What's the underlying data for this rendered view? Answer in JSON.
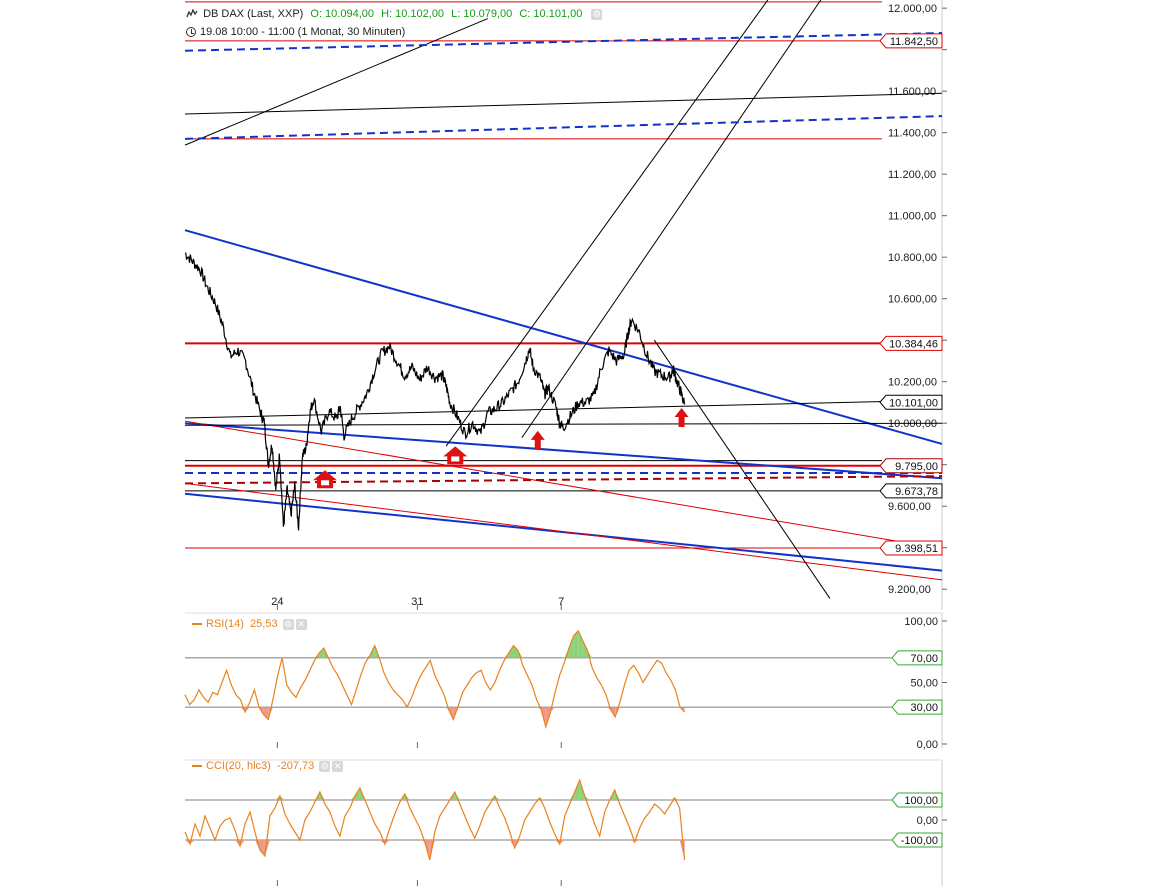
{
  "header": {
    "instrument": "DB DAX (Last, XXP)",
    "open": "O: 10.094,00",
    "high": "H: 10.102,00",
    "low": "L: 10.079,00",
    "close": "C: 10.101,00",
    "period": "19.08 10:00 - 11:00 (1 Monat, 30 Minuten)"
  },
  "colors": {
    "price": "#000000",
    "support_blue": "#1133cc",
    "resistance_red": "#dd0000",
    "indicator": "#e8821e",
    "overbought_fill": "#8ed27a",
    "oversold_fill": "#ee9a86",
    "arrow": "#e01010"
  },
  "chart_data": [
    {
      "type": "line",
      "name": "DB DAX price chart",
      "ylim": [
        9100,
        12020
      ],
      "yticks": [
        9200,
        9400,
        9600,
        9800,
        10000,
        10200,
        10400,
        10600,
        10800,
        11000,
        11200,
        11400,
        11600,
        11800,
        12000
      ],
      "ytick_labels": [
        "9.200,00",
        "",
        "9.600,00",
        "",
        "10.000,00",
        "10.200,00",
        "",
        "10.600,00",
        "10.800,00",
        "11.000,00",
        "11.200,00",
        "11.400,00",
        "11.600,00",
        "",
        "12.000,00"
      ],
      "xticks": [
        {
          "label": "24",
          "t": 0.122
        },
        {
          "label": "31",
          "t": 0.307
        },
        {
          "label": "7",
          "t": 0.497
        }
      ],
      "price_labels": [
        {
          "text": "11.842,50",
          "value": 11842.5,
          "color": "#dd0000"
        },
        {
          "text": "10.384,46",
          "value": 10384.46,
          "color": "#dd0000"
        },
        {
          "text": "10.101,00",
          "value": 10101,
          "color": "#000000"
        },
        {
          "text": "9.795,00",
          "value": 9795,
          "color": "#aa0000"
        },
        {
          "text": "9.673,78",
          "value": 9673.78,
          "color": "#000000"
        },
        {
          "text": "9.398,51",
          "value": 9398.51,
          "color": "#dd0000"
        }
      ],
      "horizontal_lines": [
        {
          "value": 12030,
          "color": "#dd0000"
        },
        {
          "value": 11842.5,
          "color": "#dd0000"
        },
        {
          "value": 11370,
          "color": "#dd0000"
        },
        {
          "value": 10384.46,
          "color": "#dd0000",
          "width": 2
        },
        {
          "value": 9820,
          "color": "#000000"
        },
        {
          "value": 9795,
          "color": "#dd0000",
          "width": 2
        },
        {
          "value": 9673.78,
          "color": "#000000"
        },
        {
          "value": 9398.51,
          "color": "#dd0000"
        }
      ],
      "trend_lines": [
        {
          "t1": 0.0,
          "v1": 10930,
          "t2": 1.0,
          "v2": 9900,
          "color": "#1133cc",
          "width": 2
        },
        {
          "t1": 0.0,
          "v1": 10000,
          "t2": 1.0,
          "v2": 9735,
          "color": "#1133cc",
          "width": 2
        },
        {
          "t1": 0.0,
          "v1": 9660,
          "t2": 1.0,
          "v2": 9290,
          "color": "#1133cc",
          "width": 2
        },
        {
          "t1": 0.0,
          "v1": 10010,
          "t2": 1.0,
          "v2": 9395,
          "color": "#dd0000",
          "width": 1
        },
        {
          "t1": 0.0,
          "v1": 9710,
          "t2": 1.0,
          "v2": 9245,
          "color": "#dd0000",
          "width": 1
        },
        {
          "t1": 0.0,
          "v1": 10025,
          "t2": 1.0,
          "v2": 10111,
          "color": "#000000",
          "width": 1
        },
        {
          "t1": 0.0,
          "v1": 9990,
          "t2": 1.0,
          "v2": 10000,
          "color": "#000000",
          "width": 1
        },
        {
          "t1": 0.0,
          "v1": 11490,
          "t2": 1.0,
          "v2": 11590,
          "color": "#000000",
          "width": 1
        },
        {
          "t1": 0.0,
          "v1": 11340,
          "t2": 0.4,
          "v2": 11950,
          "color": "#000000",
          "width": 1
        },
        {
          "t1": 0.345,
          "v1": 9890,
          "t2": 0.77,
          "v2": 12040,
          "color": "#000000",
          "width": 1
        },
        {
          "t1": 0.445,
          "v1": 9930,
          "t2": 0.84,
          "v2": 12040,
          "color": "#000000",
          "width": 1
        },
        {
          "t1": 0.62,
          "v1": 10400,
          "t2": 0.852,
          "v2": 9155,
          "color": "#000000",
          "width": 1
        }
      ],
      "dashed_lines": [
        {
          "t1": 0.0,
          "v1": 11795,
          "t2": 1.0,
          "v2": 11880,
          "color": "#1133cc"
        },
        {
          "t1": 0.0,
          "v1": 11370,
          "t2": 1.0,
          "v2": 11480,
          "color": "#1133cc"
        },
        {
          "t1": 0.0,
          "v1": 9760,
          "t2": 1.0,
          "v2": 9760,
          "color": "#1133cc"
        },
        {
          "t1": 0.0,
          "v1": 9710,
          "t2": 1.0,
          "v2": 9745,
          "color": "#aa0000"
        }
      ],
      "markers": [
        {
          "t": 0.185,
          "v": 9725,
          "kind": "house"
        },
        {
          "t": 0.357,
          "v": 9840,
          "kind": "house"
        },
        {
          "t": 0.466,
          "v": 9920,
          "kind": "up"
        },
        {
          "t": 0.656,
          "v": 10030,
          "kind": "up"
        }
      ],
      "price_series": [
        [
          0.0,
          10820
        ],
        [
          0.01,
          10780
        ],
        [
          0.02,
          10740
        ],
        [
          0.03,
          10650
        ],
        [
          0.04,
          10580
        ],
        [
          0.05,
          10470
        ],
        [
          0.06,
          10320
        ],
        [
          0.07,
          10350
        ],
        [
          0.08,
          10300
        ],
        [
          0.09,
          10160
        ],
        [
          0.1,
          10050
        ],
        [
          0.105,
          10000
        ],
        [
          0.11,
          9800
        ],
        [
          0.115,
          9900
        ],
        [
          0.12,
          9680
        ],
        [
          0.125,
          9850
        ],
        [
          0.13,
          9500
        ],
        [
          0.135,
          9680
        ],
        [
          0.14,
          9560
        ],
        [
          0.145,
          9700
        ],
        [
          0.15,
          9500
        ],
        [
          0.155,
          9840
        ],
        [
          0.16,
          9880
        ],
        [
          0.165,
          10050
        ],
        [
          0.17,
          10120
        ],
        [
          0.18,
          9960
        ],
        [
          0.19,
          10060
        ],
        [
          0.2,
          10020
        ],
        [
          0.205,
          10080
        ],
        [
          0.21,
          9940
        ],
        [
          0.22,
          10020
        ],
        [
          0.23,
          10080
        ],
        [
          0.24,
          10140
        ],
        [
          0.25,
          10250
        ],
        [
          0.26,
          10340
        ],
        [
          0.27,
          10370
        ],
        [
          0.28,
          10300
        ],
        [
          0.29,
          10230
        ],
        [
          0.3,
          10270
        ],
        [
          0.31,
          10210
        ],
        [
          0.32,
          10270
        ],
        [
          0.33,
          10220
        ],
        [
          0.34,
          10230
        ],
        [
          0.345,
          10180
        ],
        [
          0.35,
          10100
        ],
        [
          0.36,
          10030
        ],
        [
          0.37,
          9950
        ],
        [
          0.38,
          10000
        ],
        [
          0.39,
          9950
        ],
        [
          0.4,
          10050
        ],
        [
          0.41,
          10070
        ],
        [
          0.42,
          10100
        ],
        [
          0.43,
          10150
        ],
        [
          0.44,
          10200
        ],
        [
          0.45,
          10300
        ],
        [
          0.455,
          10360
        ],
        [
          0.46,
          10270
        ],
        [
          0.47,
          10210
        ],
        [
          0.475,
          10140
        ],
        [
          0.48,
          10170
        ],
        [
          0.49,
          10080
        ],
        [
          0.495,
          10000
        ],
        [
          0.5,
          9980
        ],
        [
          0.51,
          10040
        ],
        [
          0.52,
          10100
        ],
        [
          0.53,
          10100
        ],
        [
          0.54,
          10130
        ],
        [
          0.55,
          10270
        ],
        [
          0.56,
          10350
        ],
        [
          0.57,
          10300
        ],
        [
          0.58,
          10330
        ],
        [
          0.585,
          10430
        ],
        [
          0.59,
          10500
        ],
        [
          0.6,
          10440
        ],
        [
          0.61,
          10330
        ],
        [
          0.62,
          10250
        ],
        [
          0.63,
          10230
        ],
        [
          0.64,
          10220
        ],
        [
          0.645,
          10260
        ],
        [
          0.65,
          10200
        ],
        [
          0.655,
          10150
        ],
        [
          0.66,
          10090
        ]
      ]
    },
    {
      "type": "line",
      "name": "RSI(14) 25,53",
      "label": "RSI(14)",
      "value_label": "25,53",
      "ylim": [
        0,
        100
      ],
      "yticks": [
        0,
        50,
        100
      ],
      "ytick_labels": [
        "0,00",
        "50,00",
        "100,00"
      ],
      "levels": [
        {
          "value": 70,
          "label": "70,00"
        },
        {
          "value": 30,
          "label": "30,00"
        }
      ],
      "values": [
        40,
        32,
        36,
        44,
        38,
        34,
        42,
        40,
        50,
        60,
        48,
        40,
        36,
        26,
        34,
        44,
        30,
        24,
        20,
        36,
        55,
        70,
        48,
        42,
        38,
        46,
        52,
        60,
        68,
        74,
        78,
        70,
        62,
        56,
        48,
        40,
        32,
        44,
        56,
        66,
        72,
        80,
        70,
        58,
        50,
        44,
        40,
        36,
        30,
        38,
        48,
        56,
        62,
        68,
        56,
        48,
        40,
        28,
        20,
        30,
        42,
        48,
        54,
        58,
        60,
        50,
        44,
        50,
        60,
        68,
        74,
        80,
        76,
        64,
        56,
        48,
        36,
        28,
        14,
        26,
        42,
        56,
        66,
        78,
        88,
        92,
        84,
        76,
        62,
        54,
        48,
        40,
        28,
        22,
        34,
        48,
        60,
        64,
        58,
        50,
        56,
        62,
        68,
        66,
        58,
        52,
        44,
        30,
        26
      ],
      "t_range": [
        0.0,
        0.66
      ]
    },
    {
      "type": "line",
      "name": "CCI(20, hlc3) -207,73",
      "label": "CCI(20, hlc3)",
      "value_label": "-207,73",
      "ylim": [
        -310,
        260
      ],
      "yticks": [
        0
      ],
      "ytick_labels": [
        "0,00"
      ],
      "levels": [
        {
          "value": 100,
          "label": "100,00"
        },
        {
          "value": -100,
          "label": "-100,00"
        }
      ],
      "values": [
        -60,
        -120,
        -20,
        -80,
        20,
        -40,
        -100,
        -30,
        0,
        10,
        -50,
        -130,
        -20,
        40,
        -60,
        -150,
        -180,
        20,
        60,
        120,
        30,
        -20,
        -60,
        -100,
        0,
        40,
        90,
        140,
        80,
        40,
        -30,
        -80,
        20,
        60,
        120,
        160,
        100,
        40,
        -20,
        -60,
        -120,
        -40,
        30,
        90,
        130,
        60,
        10,
        -40,
        -110,
        -200,
        -60,
        20,
        60,
        100,
        140,
        80,
        20,
        -40,
        -90,
        -30,
        40,
        80,
        120,
        60,
        10,
        -60,
        -140,
        -80,
        0,
        40,
        80,
        110,
        60,
        -10,
        -70,
        -120,
        20,
        80,
        140,
        200,
        120,
        50,
        -20,
        -80,
        40,
        100,
        150,
        80,
        20,
        -40,
        -110,
        -40,
        10,
        40,
        80,
        60,
        30,
        70,
        110,
        60,
        -200
      ]
    }
  ]
}
